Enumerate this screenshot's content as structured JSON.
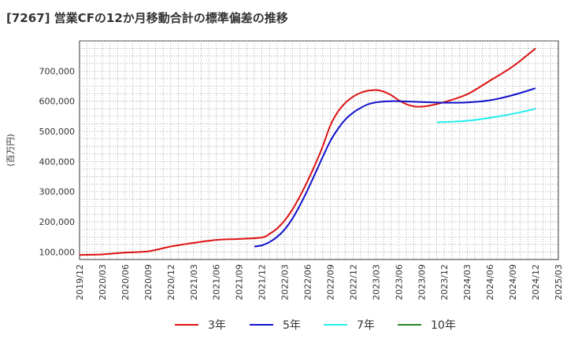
{
  "chart_data": {
    "type": "line",
    "title": "[7267]  営業CFの12か月移動合計の標準偏差の推移",
    "ylabel": "(百万円)",
    "xlabel": "",
    "ylim": [
      75000,
      800000
    ],
    "yticks": [
      100000,
      200000,
      300000,
      400000,
      500000,
      600000,
      700000
    ],
    "ytick_labels": [
      "100,000",
      "200,000",
      "300,000",
      "400,000",
      "500,000",
      "600,000",
      "700,000"
    ],
    "x_tick_labels": [
      "2019/12",
      "2020/03",
      "2020/06",
      "2020/09",
      "2020/12",
      "2021/03",
      "2021/06",
      "2021/09",
      "2021/12",
      "2022/03",
      "2022/06",
      "2022/09",
      "2022/12",
      "2023/03",
      "2023/06",
      "2023/09",
      "2023/12",
      "2024/03",
      "2024/06",
      "2024/09",
      "2024/12",
      "2025/03"
    ],
    "grid": true,
    "legend_position": "bottom",
    "series": [
      {
        "name": "3年",
        "color": "#dd1111",
        "points": [
          [
            "2019/12",
            90000
          ],
          [
            "2020/03",
            92000
          ],
          [
            "2020/06",
            98000
          ],
          [
            "2020/09",
            102000
          ],
          [
            "2020/12",
            118000
          ],
          [
            "2021/03",
            130000
          ],
          [
            "2021/06",
            140000
          ],
          [
            "2021/09",
            143000
          ],
          [
            "2021/12",
            148000
          ],
          [
            "2022/01",
            160000
          ],
          [
            "2022/02",
            178000
          ],
          [
            "2022/03",
            205000
          ],
          [
            "2022/04",
            240000
          ],
          [
            "2022/05",
            285000
          ],
          [
            "2022/06",
            335000
          ],
          [
            "2022/07",
            390000
          ],
          [
            "2022/08",
            450000
          ],
          [
            "2022/09",
            520000
          ],
          [
            "2022/10",
            565000
          ],
          [
            "2022/11",
            595000
          ],
          [
            "2022/12",
            615000
          ],
          [
            "2023/01",
            628000
          ],
          [
            "2023/02",
            635000
          ],
          [
            "2023/03",
            637000
          ],
          [
            "2023/04",
            632000
          ],
          [
            "2023/05",
            620000
          ],
          [
            "2023/06",
            603000
          ],
          [
            "2023/07",
            590000
          ],
          [
            "2023/08",
            583000
          ],
          [
            "2023/09",
            582000
          ],
          [
            "2023/10",
            585000
          ],
          [
            "2023/12",
            597000
          ],
          [
            "2024/03",
            623000
          ],
          [
            "2024/06",
            668000
          ],
          [
            "2024/09",
            715000
          ],
          [
            "2024/12",
            775000
          ]
        ]
      },
      {
        "name": "5年",
        "color": "#1111cc",
        "points": [
          [
            "2021/11",
            118000
          ],
          [
            "2021/12",
            122000
          ],
          [
            "2022/01",
            133000
          ],
          [
            "2022/02",
            150000
          ],
          [
            "2022/03",
            175000
          ],
          [
            "2022/04",
            210000
          ],
          [
            "2022/05",
            255000
          ],
          [
            "2022/06",
            305000
          ],
          [
            "2022/07",
            360000
          ],
          [
            "2022/08",
            415000
          ],
          [
            "2022/09",
            468000
          ],
          [
            "2022/10",
            508000
          ],
          [
            "2022/11",
            540000
          ],
          [
            "2022/12",
            562000
          ],
          [
            "2023/01",
            578000
          ],
          [
            "2023/02",
            590000
          ],
          [
            "2023/03",
            596000
          ],
          [
            "2023/04",
            599000
          ],
          [
            "2023/05",
            600000
          ],
          [
            "2023/06",
            600000
          ],
          [
            "2023/09",
            597000
          ],
          [
            "2023/12",
            595000
          ],
          [
            "2024/03",
            596000
          ],
          [
            "2024/06",
            603000
          ],
          [
            "2024/09",
            620000
          ],
          [
            "2024/12",
            643000
          ]
        ]
      },
      {
        "name": "7年",
        "color": "#22eeee",
        "points": [
          [
            "2023/11",
            530000
          ],
          [
            "2023/12",
            531000
          ],
          [
            "2024/03",
            535000
          ],
          [
            "2024/06",
            545000
          ],
          [
            "2024/09",
            558000
          ],
          [
            "2024/12",
            575000
          ]
        ]
      },
      {
        "name": "10年",
        "color": "#228822",
        "points": []
      }
    ]
  }
}
